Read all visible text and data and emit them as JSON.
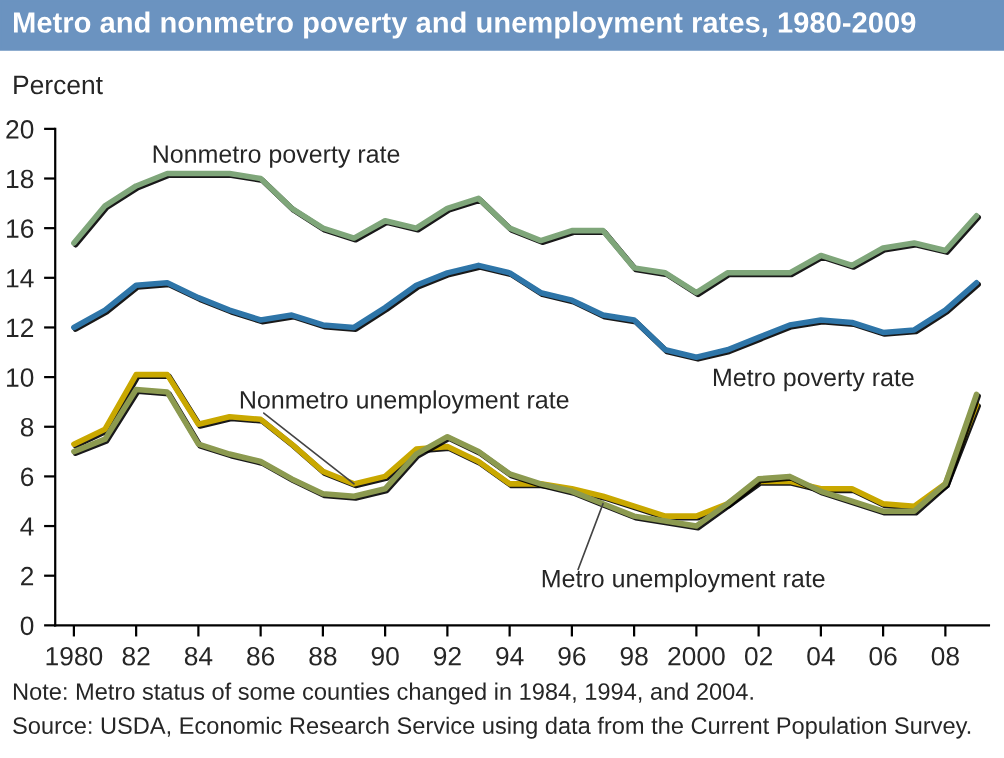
{
  "chart_data": {
    "type": "line",
    "title": "Metro and nonmetro poverty and unemployment rates, 1980-2009",
    "ylabel": "Percent",
    "x": [
      1980,
      1981,
      1982,
      1983,
      1984,
      1985,
      1986,
      1987,
      1988,
      1989,
      1990,
      1991,
      1992,
      1993,
      1994,
      1995,
      1996,
      1997,
      1998,
      1999,
      2000,
      2001,
      2002,
      2003,
      2004,
      2005,
      2006,
      2007,
      2008,
      2009
    ],
    "series": [
      {
        "name": "Nonmetro poverty rate",
        "color": "#7fa67a",
        "values": [
          15.4,
          16.9,
          17.7,
          18.2,
          18.2,
          18.2,
          18.0,
          16.8,
          16.0,
          15.6,
          16.3,
          16.0,
          16.8,
          17.2,
          16.0,
          15.5,
          15.9,
          15.9,
          14.4,
          14.2,
          13.4,
          14.2,
          14.2,
          14.2,
          14.9,
          14.5,
          15.2,
          15.4,
          15.1,
          16.5
        ]
      },
      {
        "name": "Metro poverty rate",
        "color": "#2e75a8",
        "values": [
          12.0,
          12.7,
          13.7,
          13.8,
          13.2,
          12.7,
          12.3,
          12.5,
          12.1,
          12.0,
          12.8,
          13.7,
          14.2,
          14.5,
          14.2,
          13.4,
          13.1,
          12.5,
          12.3,
          11.1,
          10.8,
          11.1,
          11.6,
          12.1,
          12.3,
          12.2,
          11.8,
          11.9,
          12.7,
          13.8
        ]
      },
      {
        "name": "Nonmetro unemployment rate",
        "color": "#c9a800",
        "values": [
          7.3,
          7.9,
          10.1,
          10.1,
          8.1,
          8.4,
          8.3,
          7.3,
          6.2,
          5.7,
          6.0,
          7.1,
          7.2,
          6.6,
          5.7,
          5.7,
          5.5,
          5.2,
          4.8,
          4.4,
          4.4,
          4.9,
          5.8,
          5.8,
          5.5,
          5.5,
          4.9,
          4.8,
          5.7,
          8.9
        ]
      },
      {
        "name": "Metro unemployment rate",
        "color": "#8c9a50",
        "values": [
          7.0,
          7.5,
          9.5,
          9.4,
          7.3,
          6.9,
          6.6,
          5.9,
          5.3,
          5.2,
          5.5,
          6.9,
          7.6,
          7.0,
          6.1,
          5.7,
          5.4,
          4.9,
          4.4,
          4.2,
          4.0,
          4.9,
          5.9,
          6.0,
          5.4,
          5.0,
          4.6,
          4.6,
          5.7,
          9.3
        ]
      }
    ],
    "xlim": [
      1979.4,
      2009.4
    ],
    "xticks": [
      {
        "value": 1980,
        "label": "1980"
      },
      {
        "value": 1982,
        "label": "82"
      },
      {
        "value": 1984,
        "label": "84"
      },
      {
        "value": 1986,
        "label": "86"
      },
      {
        "value": 1988,
        "label": "88"
      },
      {
        "value": 1990,
        "label": "90"
      },
      {
        "value": 1992,
        "label": "92"
      },
      {
        "value": 1994,
        "label": "94"
      },
      {
        "value": 1996,
        "label": "96"
      },
      {
        "value": 1998,
        "label": "98"
      },
      {
        "value": 2000,
        "label": "2000"
      },
      {
        "value": 2002,
        "label": "02"
      },
      {
        "value": 2004,
        "label": "04"
      },
      {
        "value": 2006,
        "label": "06"
      },
      {
        "value": 2008,
        "label": "08"
      }
    ],
    "ylim": [
      0,
      20
    ],
    "yticks": [
      0,
      2,
      4,
      6,
      8,
      10,
      12,
      14,
      16,
      18,
      20
    ],
    "grid": false,
    "legend": false,
    "marker": "none",
    "line_style": "solid",
    "annotations": [
      "Note: Metro status of some counties changed in 1984, 1994, and 2004.",
      "Source: USDA, Economic Research Service using data from the Current Population Survey."
    ]
  }
}
